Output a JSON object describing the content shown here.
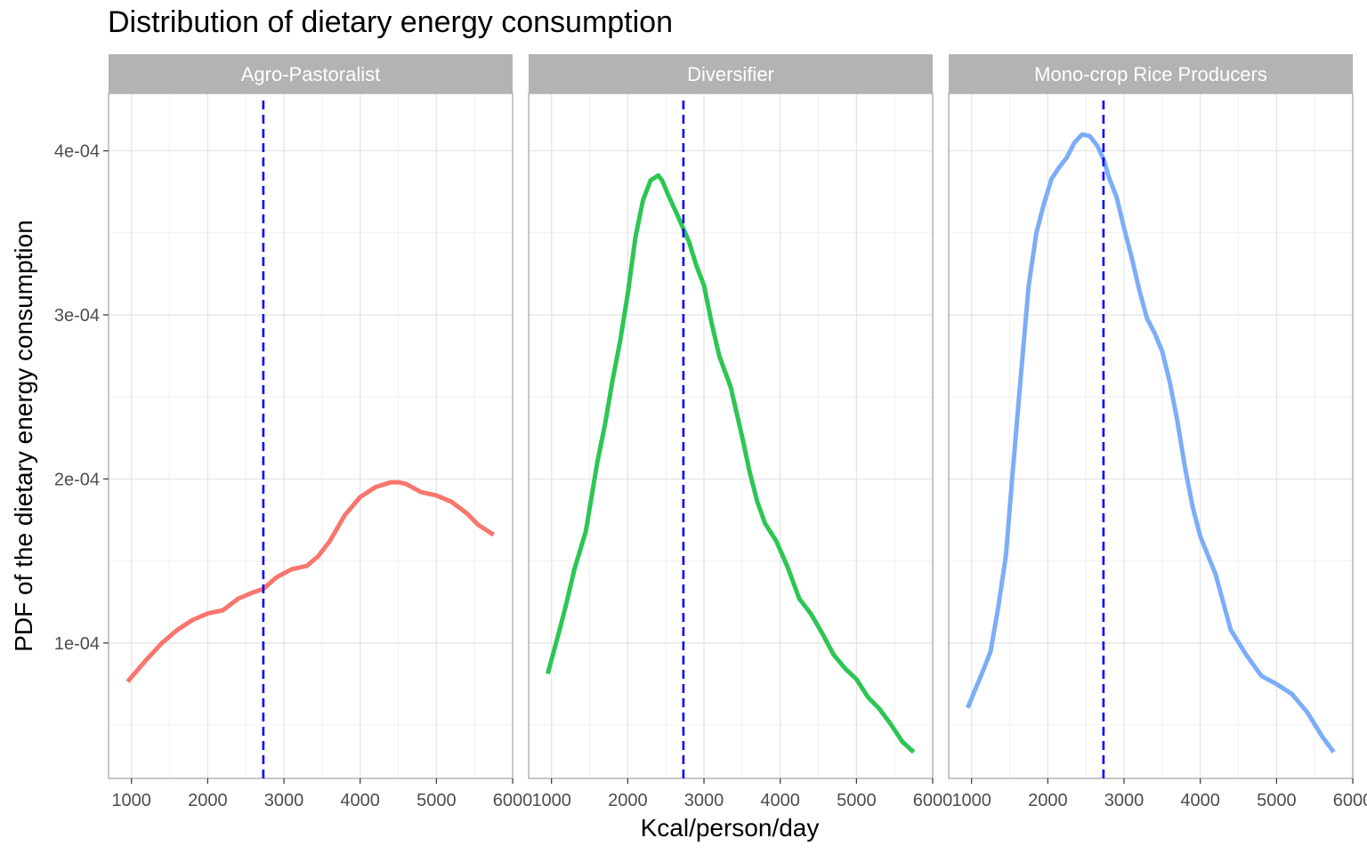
{
  "chart_data": {
    "type": "line",
    "title": "Distribution of dietary energy consumption",
    "xlabel": "Kcal/person/day",
    "ylabel": "PDF of the dietary energy consumption",
    "xlim": [
      700,
      6000
    ],
    "ylim": [
      1.75e-05,
      0.000435
    ],
    "x_ticks": [
      1000,
      2000,
      3000,
      4000,
      5000,
      6000
    ],
    "x_tick_labels": [
      "1000",
      "2000",
      "3000",
      "4000",
      "5000",
      "6000"
    ],
    "y_ticks": [
      0.0001,
      0.0002,
      0.0003,
      0.0004
    ],
    "y_tick_labels": [
      "1e-04",
      "2e-04",
      "3e-04",
      "4e-04"
    ],
    "grid": true,
    "reference_line": {
      "x": 2730,
      "style": "dashed",
      "color": "#0000ff"
    },
    "panels": [
      {
        "name": "Agro-Pastoralist",
        "color": "#f8766d",
        "x": [
          950,
          1200,
          1400,
          1600,
          1800,
          2000,
          2200,
          2400,
          2600,
          2730,
          2900,
          3100,
          3300,
          3450,
          3600,
          3800,
          4000,
          4200,
          4400,
          4500,
          4600,
          4800,
          5000,
          5200,
          5400,
          5550,
          5650,
          5750
        ],
        "values": [
          7.65e-05,
          9e-05,
          0.0001,
          0.000108,
          0.000114,
          0.000118,
          0.00012,
          0.000127,
          0.000131,
          0.000133,
          0.00014,
          0.000145,
          0.000147,
          0.000153,
          0.000162,
          0.000178,
          0.000189,
          0.000195,
          0.000198,
          0.000198,
          0.000197,
          0.000192,
          0.00019,
          0.000186,
          0.000179,
          0.000172,
          0.000169,
          0.000166
        ]
      },
      {
        "name": "Diversifier",
        "color": "#2dc653",
        "x": [
          950,
          1100,
          1200,
          1300,
          1450,
          1600,
          1700,
          1800,
          1900,
          2000,
          2100,
          2200,
          2300,
          2400,
          2450,
          2550,
          2650,
          2800,
          2900,
          3000,
          3100,
          3200,
          3350,
          3500,
          3600,
          3700,
          3800,
          3950,
          4100,
          4250,
          4400,
          4550,
          4700,
          4850,
          5000,
          5150,
          5300,
          5450,
          5600,
          5750
        ],
        "values": [
          8.12e-05,
          0.000107,
          0.000125,
          0.000145,
          0.000168,
          0.00021,
          0.000233,
          0.00026,
          0.000284,
          0.000313,
          0.000347,
          0.00037,
          0.000382,
          0.000385,
          0.000382,
          0.000371,
          0.000361,
          0.000345,
          0.00033,
          0.000318,
          0.000295,
          0.000275,
          0.000256,
          0.000226,
          0.000204,
          0.000186,
          0.000173,
          0.000162,
          0.000146,
          0.000127,
          0.000118,
          0.000106,
          9.3e-05,
          8.45e-05,
          7.8e-05,
          6.7e-05,
          6e-05,
          5.05e-05,
          4e-05,
          3.35e-05
        ]
      },
      {
        "name": "Mono-crop Rice Producers",
        "color": "#7cadf7",
        "x": [
          950,
          1050,
          1150,
          1250,
          1350,
          1450,
          1550,
          1650,
          1750,
          1850,
          1950,
          2050,
          2150,
          2250,
          2350,
          2450,
          2550,
          2650,
          2730,
          2800,
          2900,
          3000,
          3100,
          3200,
          3300,
          3400,
          3500,
          3600,
          3700,
          3800,
          3900,
          4000,
          4200,
          4400,
          4600,
          4800,
          5000,
          5200,
          5400,
          5600,
          5750
        ],
        "values": [
          6.05e-05,
          7.2e-05,
          8.3e-05,
          9.5e-05,
          0.000122,
          0.000153,
          0.00021,
          0.000265,
          0.000318,
          0.00035,
          0.000368,
          0.000383,
          0.00039,
          0.000396,
          0.000405,
          0.00041,
          0.000409,
          0.000403,
          0.000395,
          0.000384,
          0.000372,
          0.000353,
          0.000335,
          0.000315,
          0.000298,
          0.000289,
          0.000278,
          0.000259,
          0.000235,
          0.000207,
          0.000183,
          0.000165,
          0.000142,
          0.000108,
          9.3e-05,
          8e-05,
          7.5e-05,
          6.9e-05,
          5.8e-05,
          4.3e-05,
          3.35e-05
        ]
      }
    ]
  }
}
